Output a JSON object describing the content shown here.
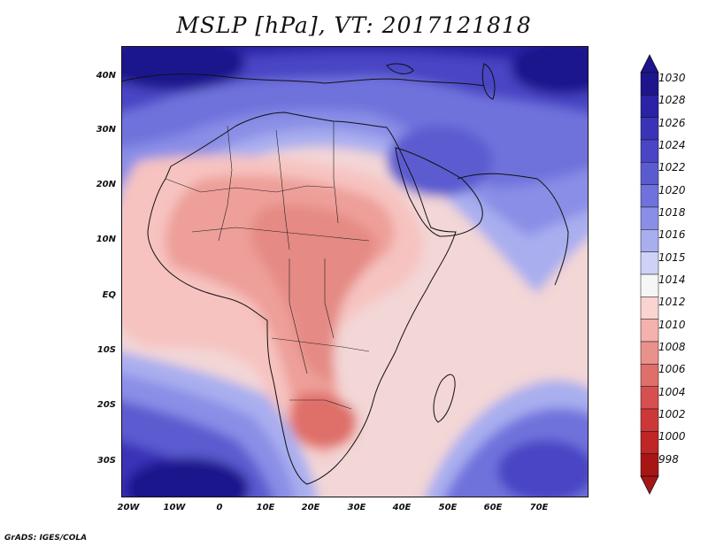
{
  "title": "MSLP [hPa], VT: 2017121818",
  "credit": "GrADS: IGES/COLA",
  "lat_labels": [
    "40N",
    "30N",
    "20N",
    "10N",
    "EQ",
    "10S",
    "20S",
    "30S"
  ],
  "lon_labels": [
    "20W",
    "10W",
    "0",
    "10E",
    "20E",
    "30E",
    "40E",
    "50E",
    "60E",
    "70E"
  ],
  "colorbar": {
    "levels": [
      "1030",
      "1028",
      "1026",
      "1024",
      "1022",
      "1020",
      "1018",
      "1016",
      "1015",
      "1014",
      "1012",
      "1010",
      "1008",
      "1006",
      "1004",
      "1002",
      "1000",
      "998"
    ],
    "colors": [
      "#1e148c",
      "#2b22a6",
      "#3a33b8",
      "#4a45c4",
      "#5b5bd0",
      "#6f72dc",
      "#8a8ee6",
      "#a9aeef",
      "#cfd2f7",
      "#f6f6f6",
      "#fbd3d1",
      "#f3b2ad",
      "#e9918b",
      "#df6f69",
      "#d65050",
      "#cc3838",
      "#bf2626",
      "#a81515"
    ]
  },
  "map_info": {
    "lon_range": [
      -22,
      82
    ],
    "lat_range": [
      -37,
      45
    ],
    "field": "mean sea level pressure",
    "valid_time": "2017121818"
  }
}
